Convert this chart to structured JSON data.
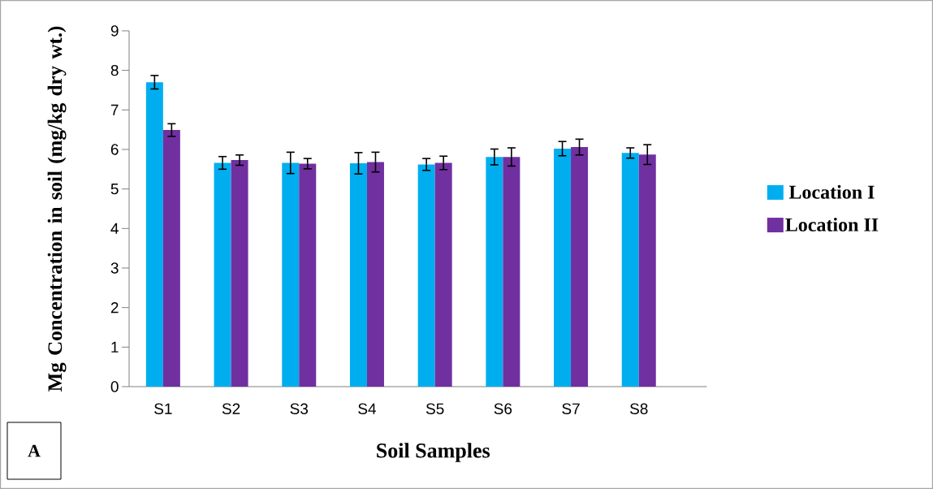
{
  "chart_data": {
    "type": "bar",
    "xlabel": "Soil Samples",
    "ylabel": "Mg Concentration in soil (mg/kg dry wt.)",
    "categories": [
      "S1",
      "S2",
      "S3",
      "S4",
      "S5",
      "S6",
      "S7",
      "S8"
    ],
    "series": [
      {
        "name": "Location I",
        "color": "#00aeef",
        "values": [
          7.7,
          5.66,
          5.66,
          5.65,
          5.62,
          5.81,
          6.02,
          5.91
        ],
        "errors": [
          0.17,
          0.16,
          0.27,
          0.27,
          0.15,
          0.2,
          0.18,
          0.13
        ]
      },
      {
        "name": "Location II",
        "color": "#7030a0",
        "values": [
          6.49,
          5.73,
          5.64,
          5.68,
          5.66,
          5.81,
          6.06,
          5.87
        ],
        "errors": [
          0.16,
          0.13,
          0.13,
          0.25,
          0.17,
          0.23,
          0.2,
          0.25
        ]
      }
    ],
    "ylim": [
      0,
      9
    ],
    "yticks": [
      0,
      1,
      2,
      3,
      4,
      5,
      6,
      7,
      8,
      9
    ],
    "legend": "right",
    "annotations": [
      "A"
    ]
  }
}
